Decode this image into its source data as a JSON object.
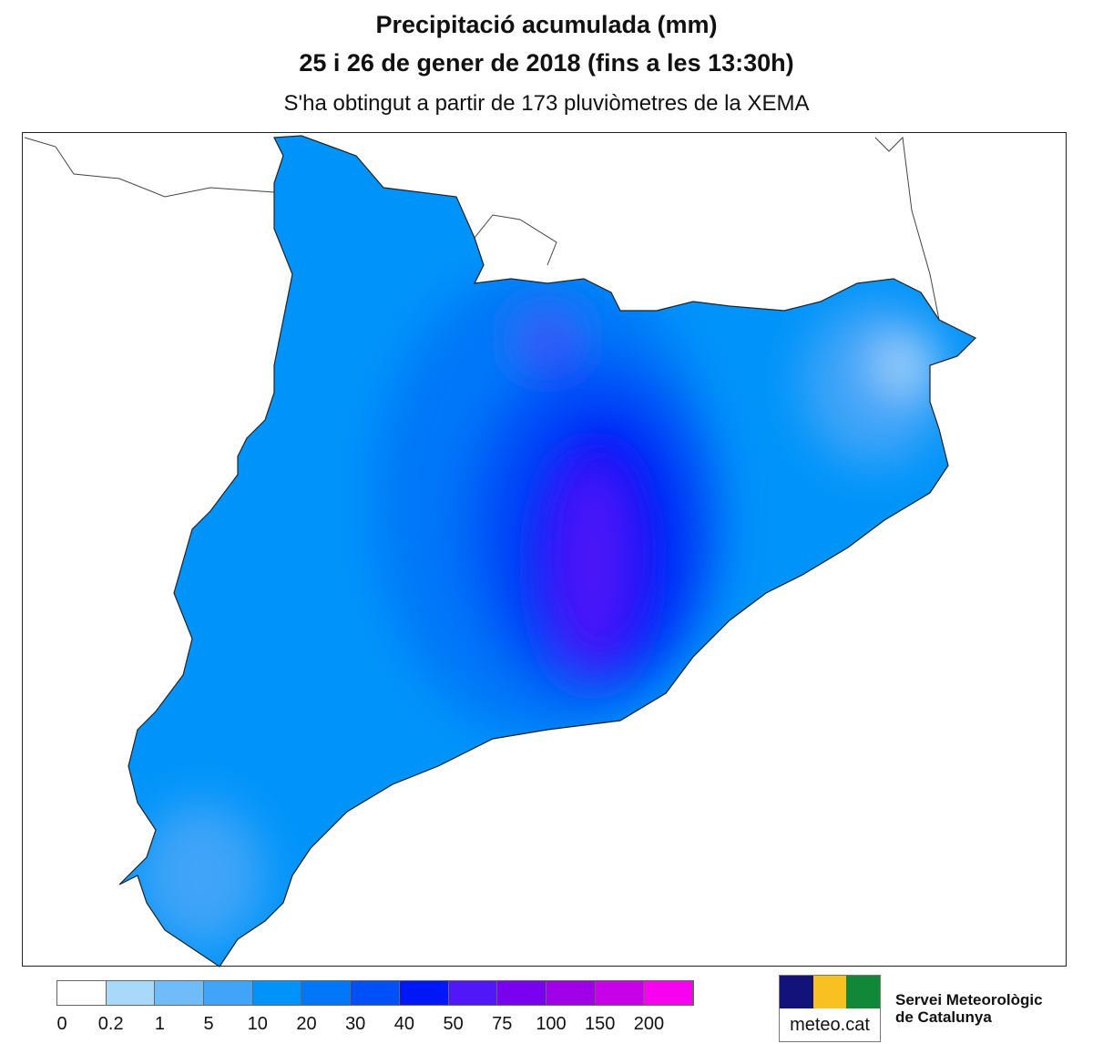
{
  "title": "Precipitació acumulada (mm)",
  "subtitle": "25 i 26 de gener de 2018 (fins a les 13:30h)",
  "note": "S'ha obtingut a partir de 173 pluviòmetres de la XEMA",
  "legend": {
    "labels": [
      "0",
      "0.2",
      "1",
      "5",
      "10",
      "20",
      "30",
      "40",
      "50",
      "75",
      "100",
      "150",
      "200"
    ],
    "colors": [
      "#ffffff",
      "#a8d8fa",
      "#70bcf8",
      "#40a4f8",
      "#0094fa",
      "#0077f8",
      "#0050f8",
      "#0018f8",
      "#5018f8",
      "#7a00f0",
      "#a000e8",
      "#c800e8",
      "#f800f0"
    ]
  },
  "logo": {
    "text": "meteo.cat",
    "org_line1": "Servei Meteorològic",
    "org_line2": "de Catalunya"
  }
}
